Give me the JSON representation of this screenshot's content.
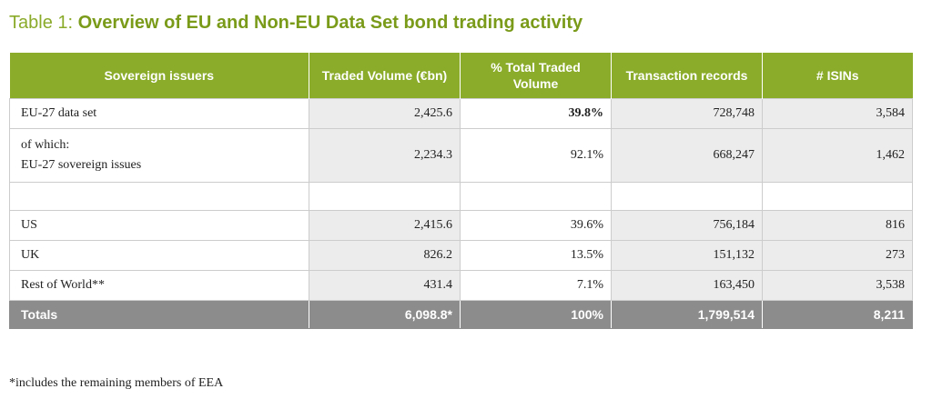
{
  "title": {
    "prefix": "Table 1: ",
    "main": "Overview of EU and Non-EU Data Set bond trading activity"
  },
  "headers": [
    "Sovereign issuers",
    "Traded Volume (€bn)",
    "% Total Traded Volume",
    "Transaction records",
    "# ISINs"
  ],
  "rows": [
    {
      "label": "EU-27 data set",
      "volume": "2,425.6",
      "pct": "39.8%",
      "records": "728,748",
      "isins": "3,584"
    },
    {
      "label_line1": "of which:",
      "label_line2": "EU-27 sovereign issues",
      "volume": "2,234.3",
      "pct": "92.1%",
      "records": "668,247",
      "isins": "1,462"
    },
    {
      "label": "US",
      "volume": "2,415.6",
      "pct": "39.6%",
      "records": "756,184",
      "isins": "816"
    },
    {
      "label": "UK",
      "volume": "826.2",
      "pct": "13.5%",
      "records": "151,132",
      "isins": "273"
    },
    {
      "label": "Rest of World**",
      "volume": "431.4",
      "pct": "7.1%",
      "records": "163,450",
      "isins": "3,538"
    }
  ],
  "totals": {
    "label": "Totals",
    "volume": "6,098.8*",
    "pct": "100%",
    "records": "1,799,514",
    "isins": "8,211"
  },
  "footnote": "*includes the remaining members of EEA"
}
